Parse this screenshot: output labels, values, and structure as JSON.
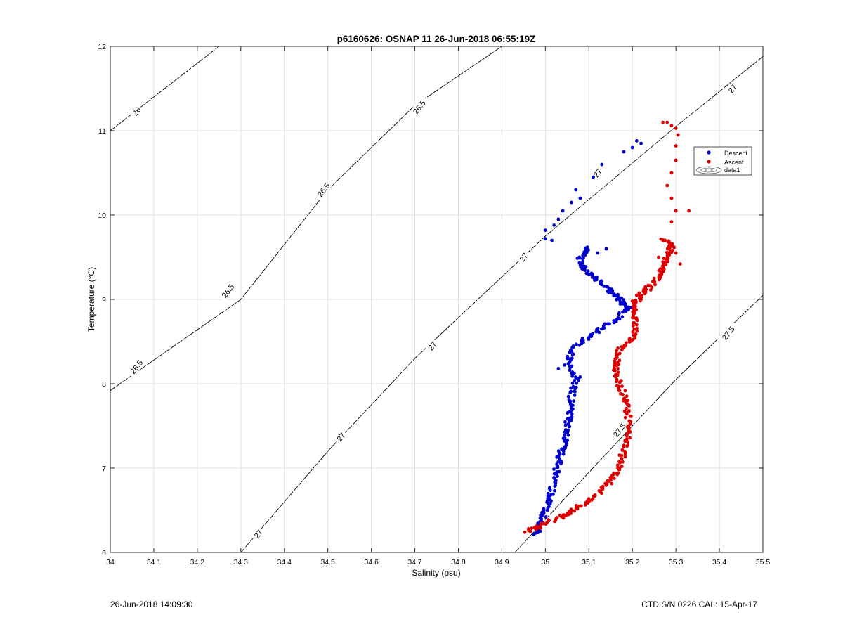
{
  "chart_data": {
    "type": "scatter",
    "title": "p6160626: OSNAP 11 26-Jun-2018 06:55:19Z",
    "xlabel": "Salinity (psu)",
    "ylabel": "Temperature (°C)",
    "xlim": [
      34,
      35.5
    ],
    "ylim": [
      6,
      12
    ],
    "xticks": [
      "34",
      "34.1",
      "34.2",
      "34.3",
      "34.4",
      "34.5",
      "34.6",
      "34.7",
      "34.8",
      "34.9",
      "35",
      "35.1",
      "35.2",
      "35.3",
      "35.4",
      "35.5"
    ],
    "yticks": [
      "6",
      "7",
      "8",
      "9",
      "10",
      "11",
      "12"
    ],
    "grid": true,
    "legend_position": "top-right",
    "legend": [
      "Descent",
      "Ascent",
      "data1"
    ],
    "colors": {
      "descent": "#0000cc",
      "ascent": "#dd0000",
      "contour": "#000000",
      "grid": "#e0e0e0"
    },
    "contours": [
      {
        "level": "26",
        "points": [
          [
            34.0,
            11.0
          ],
          [
            34.25,
            12.0
          ]
        ]
      },
      {
        "level": "26.5",
        "points": [
          [
            34.0,
            7.92
          ],
          [
            34.3,
            9.0
          ],
          [
            34.5,
            10.3
          ],
          [
            34.7,
            11.3
          ],
          [
            34.9,
            12.0
          ]
        ]
      },
      {
        "level": "27",
        "points": [
          [
            34.3,
            6.0
          ],
          [
            34.5,
            7.2
          ],
          [
            34.7,
            8.3
          ],
          [
            35.0,
            9.75
          ],
          [
            35.3,
            11.05
          ],
          [
            35.5,
            11.88
          ]
        ]
      },
      {
        "level": "27.5",
        "points": [
          [
            34.93,
            6.0
          ],
          [
            35.1,
            6.95
          ],
          [
            35.3,
            8.05
          ],
          [
            35.5,
            9.05
          ]
        ]
      }
    ],
    "contour_labels": [
      {
        "text": "26",
        "at": [
          34.06,
          11.23
        ]
      },
      {
        "text": "26.5",
        "at": [
          34.06,
          8.2
        ]
      },
      {
        "text": "26.5",
        "at": [
          34.27,
          9.1
        ]
      },
      {
        "text": "26.5",
        "at": [
          34.49,
          10.3
        ]
      },
      {
        "text": "26.5",
        "at": [
          34.71,
          11.28
        ]
      },
      {
        "text": "27",
        "at": [
          34.34,
          6.22
        ]
      },
      {
        "text": "27",
        "at": [
          34.53,
          7.37
        ]
      },
      {
        "text": "27",
        "at": [
          34.74,
          8.45
        ]
      },
      {
        "text": "27",
        "at": [
          34.95,
          9.5
        ]
      },
      {
        "text": "27",
        "at": [
          35.12,
          10.5
        ]
      },
      {
        "text": "27",
        "at": [
          35.43,
          11.5
        ]
      },
      {
        "text": "27.5",
        "at": [
          35.17,
          7.45
        ]
      },
      {
        "text": "27.5",
        "at": [
          35.42,
          8.6
        ]
      }
    ],
    "series": [
      {
        "name": "Descent",
        "path": [
          [
            34.98,
            6.22
          ],
          [
            34.99,
            6.35
          ],
          [
            35.0,
            6.5
          ],
          [
            35.01,
            6.65
          ],
          [
            35.02,
            6.85
          ],
          [
            35.03,
            7.05
          ],
          [
            35.04,
            7.25
          ],
          [
            35.05,
            7.45
          ],
          [
            35.055,
            7.65
          ],
          [
            35.06,
            7.85
          ],
          [
            35.07,
            8.05
          ],
          [
            35.05,
            8.25
          ],
          [
            35.07,
            8.45
          ],
          [
            35.11,
            8.6
          ],
          [
            35.16,
            8.75
          ],
          [
            35.19,
            8.9
          ],
          [
            35.17,
            9.0
          ],
          [
            35.15,
            9.1
          ],
          [
            35.12,
            9.22
          ],
          [
            35.09,
            9.35
          ],
          [
            35.08,
            9.5
          ],
          [
            35.1,
            9.62
          ]
        ],
        "scatter": [
          [
            35.0,
            9.72
          ],
          [
            35.0,
            9.82
          ],
          [
            35.02,
            9.88
          ],
          [
            35.03,
            9.95
          ],
          [
            35.04,
            10.05
          ],
          [
            35.06,
            10.15
          ],
          [
            35.07,
            10.3
          ],
          [
            35.08,
            10.2
          ],
          [
            35.11,
            10.45
          ],
          [
            35.13,
            10.6
          ],
          [
            35.18,
            10.75
          ],
          [
            35.2,
            10.8
          ],
          [
            35.21,
            10.88
          ],
          [
            35.22,
            10.85
          ],
          [
            35.015,
            9.7
          ],
          [
            35.12,
            9.55
          ],
          [
            35.14,
            9.6
          ],
          [
            35.05,
            8.3
          ],
          [
            35.03,
            8.18
          ],
          [
            35.08,
            8.08
          ]
        ]
      },
      {
        "name": "Ascent",
        "path": [
          [
            34.96,
            6.25
          ],
          [
            35.0,
            6.35
          ],
          [
            35.05,
            6.45
          ],
          [
            35.08,
            6.55
          ],
          [
            35.12,
            6.7
          ],
          [
            35.15,
            6.85
          ],
          [
            35.17,
            7.0
          ],
          [
            35.18,
            7.2
          ],
          [
            35.19,
            7.4
          ],
          [
            35.19,
            7.6
          ],
          [
            35.185,
            7.8
          ],
          [
            35.17,
            8.0
          ],
          [
            35.16,
            8.2
          ],
          [
            35.17,
            8.4
          ],
          [
            35.2,
            8.55
          ],
          [
            35.21,
            8.75
          ],
          [
            35.2,
            8.92
          ],
          [
            35.22,
            9.05
          ],
          [
            35.25,
            9.2
          ],
          [
            35.27,
            9.35
          ],
          [
            35.28,
            9.5
          ],
          [
            35.29,
            9.62
          ],
          [
            35.27,
            9.72
          ]
        ],
        "scatter": [
          [
            35.31,
            9.42
          ],
          [
            35.3,
            9.55
          ],
          [
            35.29,
            9.92
          ],
          [
            35.3,
            10.05
          ],
          [
            35.33,
            10.05
          ],
          [
            35.29,
            10.2
          ],
          [
            35.28,
            10.35
          ],
          [
            35.29,
            10.5
          ],
          [
            35.3,
            10.65
          ],
          [
            35.3,
            10.82
          ],
          [
            35.305,
            10.95
          ],
          [
            35.3,
            11.03
          ],
          [
            35.29,
            11.06
          ],
          [
            35.28,
            11.1
          ],
          [
            35.27,
            11.1
          ],
          [
            35.26,
            9.5
          ],
          [
            35.25,
            9.25
          ],
          [
            35.23,
            9.15
          ],
          [
            35.21,
            9.05
          ],
          [
            35.2,
            8.98
          ]
        ]
      }
    ]
  },
  "footer": {
    "left": "26-Jun-2018 14:09:30",
    "right": "CTD S/N 0226  CAL: 15-Apr-17"
  }
}
